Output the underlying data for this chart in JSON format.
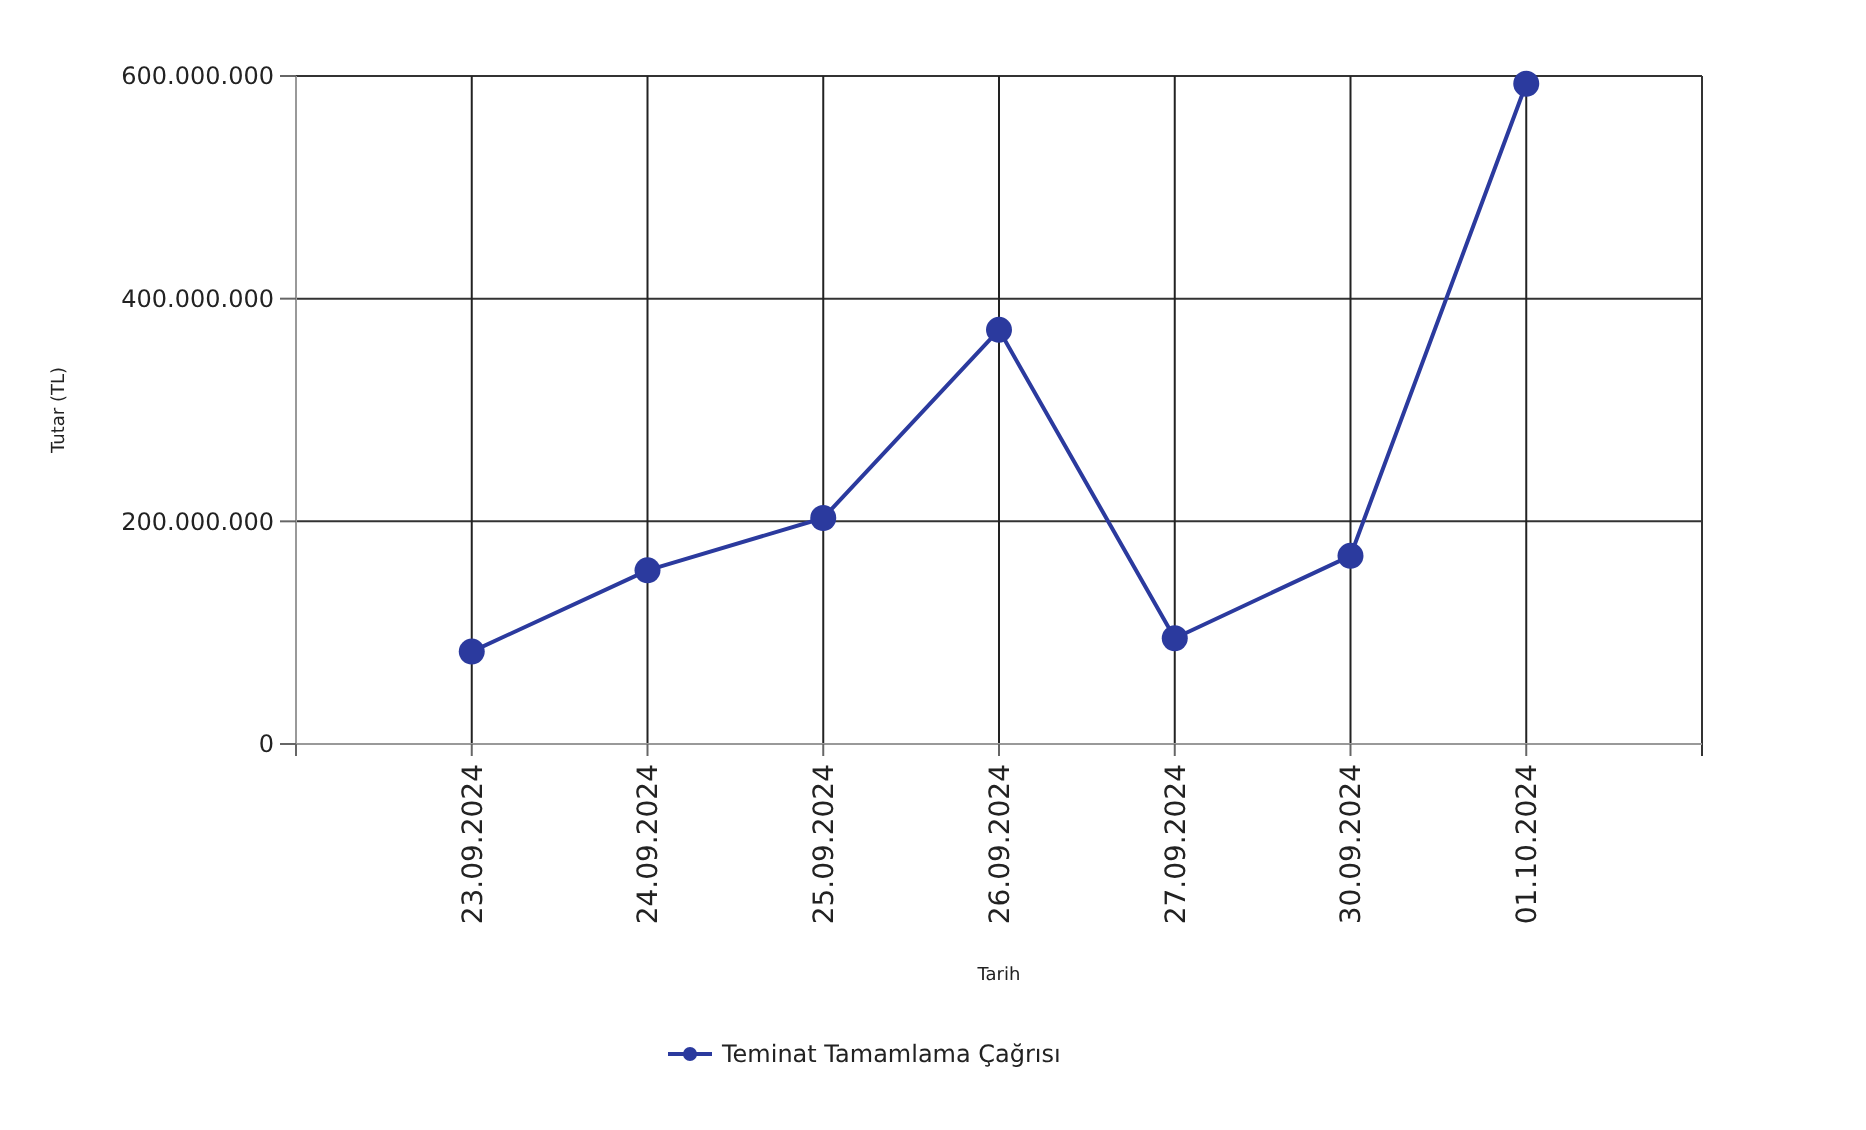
{
  "chart_data": {
    "type": "line",
    "xlabel": "Tarih",
    "ylabel": "Tutar (TL)",
    "categories": [
      "23.09.2024",
      "24.09.2024",
      "25.09.2024",
      "26.09.2024",
      "27.09.2024",
      "30.09.2024",
      "01.10.2024"
    ],
    "series": [
      {
        "name": "Teminat Tamamlama Çağrısı",
        "color": "#2b3a9e",
        "values": [
          83000000,
          156000000,
          203000000,
          372000000,
          95000000,
          169000000,
          593000000
        ]
      }
    ],
    "ylim": [
      0,
      600000000
    ],
    "yticks": [
      {
        "value": 0,
        "label": "0"
      },
      {
        "value": 200000000,
        "label": "200.000.000"
      },
      {
        "value": 400000000,
        "label": "400.000.000"
      },
      {
        "value": 600000000,
        "label": "600.000.000"
      }
    ],
    "grid": true,
    "legend": "bottom",
    "marker": "circle",
    "line_style": "solid"
  }
}
